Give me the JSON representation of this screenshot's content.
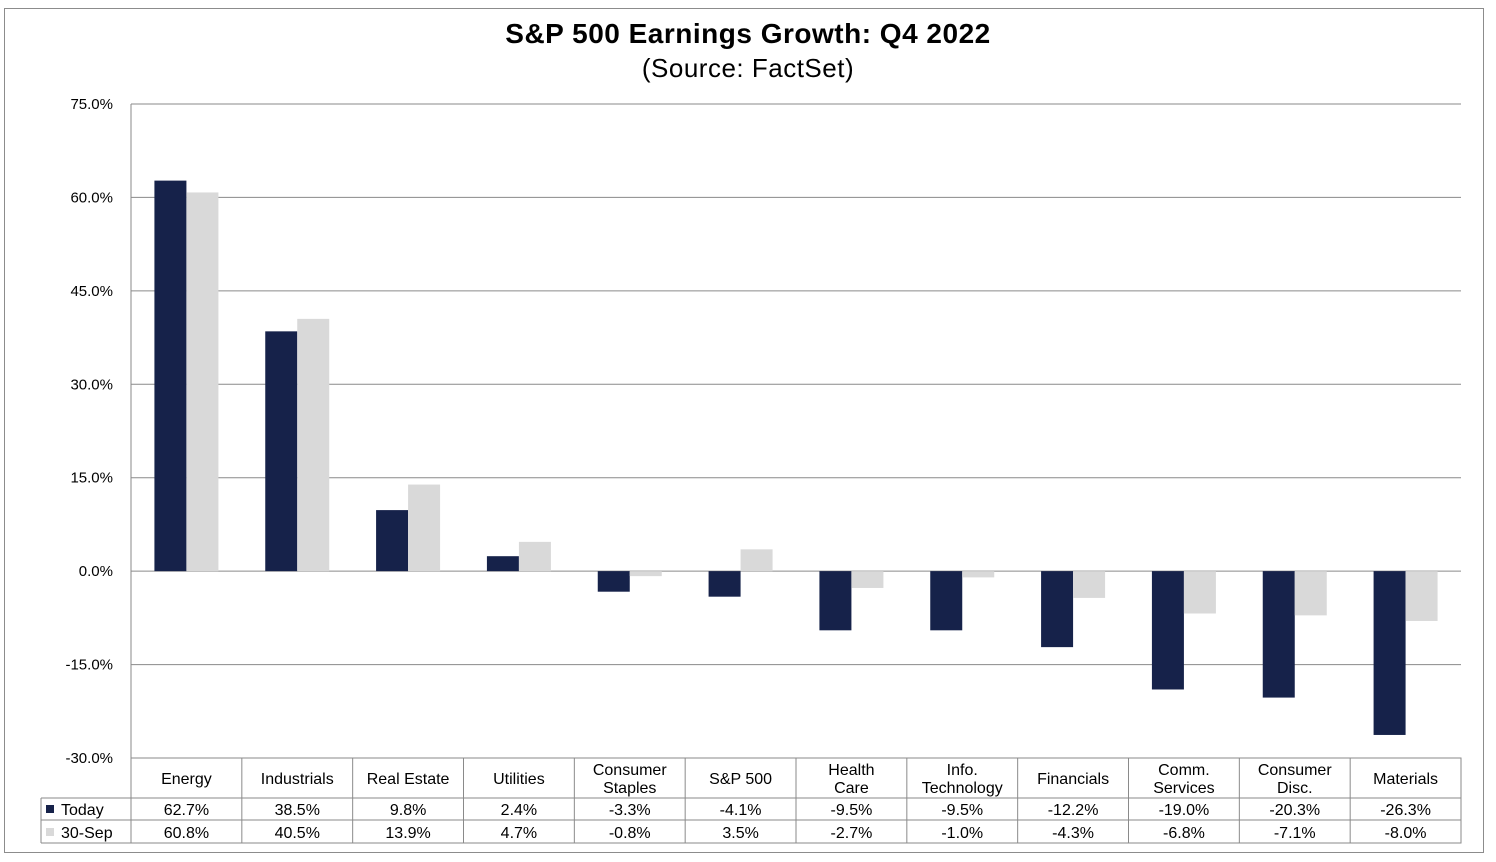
{
  "chart_data": {
    "type": "bar",
    "title": "S&P 500 Earnings Growth:  Q4 2022",
    "subtitle": "(Source: FactSet)",
    "categories": [
      [
        "Energy"
      ],
      [
        "Industrials"
      ],
      [
        "Real Estate"
      ],
      [
        "Utilities"
      ],
      [
        "Consumer",
        "Staples"
      ],
      [
        "S&P 500"
      ],
      [
        "Health",
        "Care"
      ],
      [
        "Info.",
        "Technology"
      ],
      [
        "Financials"
      ],
      [
        "Comm.",
        "Services"
      ],
      [
        "Consumer",
        "Disc."
      ],
      [
        "Materials"
      ]
    ],
    "series": [
      {
        "name": "Today",
        "color": "#16224a",
        "values": [
          62.7,
          38.5,
          9.8,
          2.4,
          -3.3,
          -4.1,
          -9.5,
          -9.5,
          -12.2,
          -19.0,
          -20.3,
          -26.3
        ],
        "labels": [
          "62.7%",
          "38.5%",
          "9.8%",
          "2.4%",
          "-3.3%",
          "-4.1%",
          "-9.5%",
          "-9.5%",
          "-12.2%",
          "-19.0%",
          "-20.3%",
          "-26.3%"
        ]
      },
      {
        "name": "30-Sep",
        "color": "#d9d9d9",
        "values": [
          60.8,
          40.5,
          13.9,
          4.7,
          -0.8,
          3.5,
          -2.7,
          -1.0,
          -4.3,
          -6.8,
          -7.1,
          -8.0
        ],
        "labels": [
          "60.8%",
          "40.5%",
          "13.9%",
          "4.7%",
          "-0.8%",
          "3.5%",
          "-2.7%",
          "-1.0%",
          "-4.3%",
          "-6.8%",
          "-7.1%",
          "-8.0%"
        ]
      }
    ],
    "yticks": [
      75,
      60,
      45,
      30,
      15,
      0,
      -15,
      -30
    ],
    "ytick_labels": [
      "75.0%",
      "60.0%",
      "45.0%",
      "30.0%",
      "15.0%",
      "0.0%",
      "-15.0%",
      "-30.0%"
    ],
    "ylim": [
      -30,
      75
    ],
    "grid": true,
    "legend": "data-table"
  }
}
